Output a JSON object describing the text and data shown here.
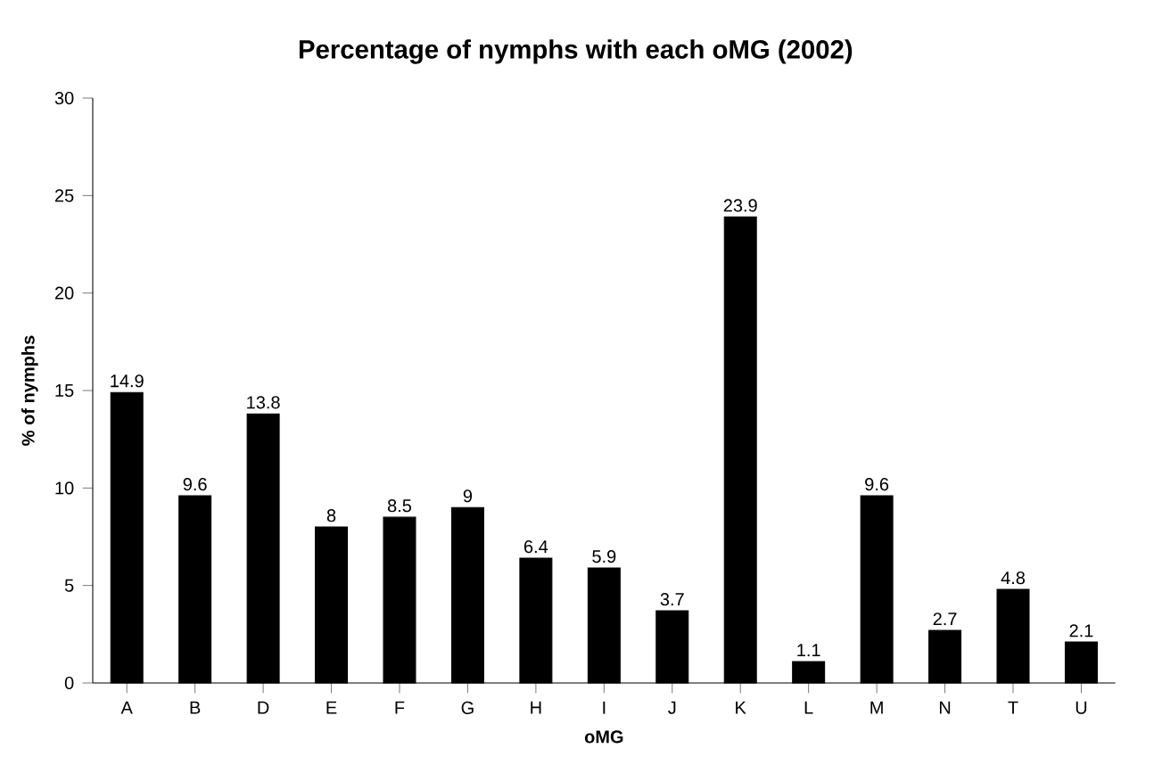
{
  "chart_data": {
    "type": "bar",
    "title": "Percentage of nymphs with each oMG (2002)",
    "xlabel": "oMG",
    "ylabel": "% of nymphs",
    "categories": [
      "A",
      "B",
      "D",
      "E",
      "F",
      "G",
      "H",
      "I",
      "J",
      "K",
      "L",
      "M",
      "N",
      "T",
      "U"
    ],
    "values": [
      14.9,
      9.6,
      13.8,
      8,
      8.5,
      9,
      6.4,
      5.9,
      3.7,
      23.9,
      1.1,
      9.6,
      2.7,
      4.8,
      2.1
    ],
    "color": "#000000",
    "ylim": [
      0,
      30
    ],
    "yticks": [
      0,
      5,
      10,
      15,
      20,
      25,
      30
    ],
    "data_labels": true
  }
}
